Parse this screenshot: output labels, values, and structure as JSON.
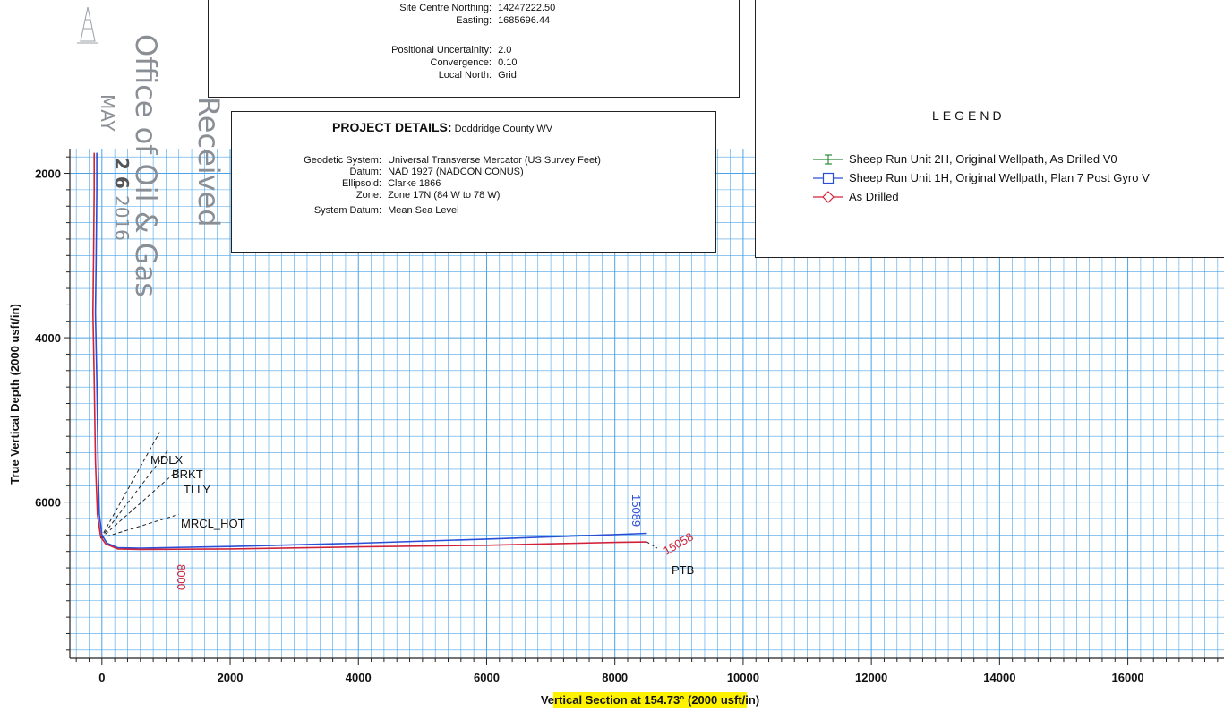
{
  "site": {
    "rows": [
      {
        "label": "Site Centre Northing:",
        "value": "14247222.50"
      },
      {
        "label": "Easting:",
        "value": "1685696.44"
      },
      {
        "label": "Positional Uncertainity:",
        "value": "2.0"
      },
      {
        "label": "Convergence:",
        "value": "0.10"
      },
      {
        "label": "Local North:",
        "value": "Grid"
      }
    ]
  },
  "project": {
    "title": "PROJECT DETAILS:",
    "county": "Doddridge County WV",
    "rows": [
      {
        "label": "Geodetic System:",
        "value": "Universal Transverse Mercator (US Survey Feet)"
      },
      {
        "label": "Datum:",
        "value": "NAD 1927 (NADCON CONUS)"
      },
      {
        "label": "Ellipsoid:",
        "value": "Clarke 1866"
      },
      {
        "label": "Zone:",
        "value": "Zone 17N (84 W to 78 W)"
      },
      {
        "label": "System Datum:",
        "value": "Mean Sea Level"
      }
    ]
  },
  "stamp": {
    "received": "Received",
    "office": "Office of Oil & Gas",
    "date_month": "MAY",
    "date_day": "2 6",
    "date_year": "2016"
  },
  "legend": {
    "title": "LEGEND",
    "items": [
      {
        "label": "Sheep Run Unit 2H, Original Wellpath, As Drilled V0",
        "color": "#2e8b3a",
        "marker": "plus"
      },
      {
        "label": "Sheep Run Unit 1H, Original Wellpath, Plan 7 Post Gyro V",
        "color": "#2a4fd6",
        "marker": "square"
      },
      {
        "label": "As Drilled",
        "color": "#d0233a",
        "marker": "diamond"
      }
    ]
  },
  "chart_data": {
    "type": "line",
    "xlabel": "Vertical Section at 154.73° (2000 usft/in)",
    "ylabel": "True Vertical Depth (2000 usft/in)",
    "xlim": [
      -500,
      17500
    ],
    "ylim": [
      7900,
      1700
    ],
    "x_ticks": [
      0,
      2000,
      4000,
      6000,
      8000,
      10000,
      12000,
      14000,
      16000
    ],
    "y_ticks": [
      2000,
      4000,
      6000
    ],
    "grid": true,
    "grid_color": "#4aa3e8",
    "x_highlight_color": "#fff200",
    "series": [
      {
        "name": "Sheep Run Unit 1H, Original Wellpath, Plan 7 Post Gyro V",
        "color": "#2a4fd6",
        "points": [
          [
            -80,
            1750
          ],
          [
            -80,
            2200
          ],
          [
            -90,
            3000
          ],
          [
            -100,
            3700
          ],
          [
            -80,
            4500
          ],
          [
            -60,
            5500
          ],
          [
            -40,
            6150
          ],
          [
            0,
            6400
          ],
          [
            80,
            6500
          ],
          [
            250,
            6555
          ],
          [
            600,
            6560
          ],
          [
            2000,
            6540
          ],
          [
            4000,
            6500
          ],
          [
            6000,
            6450
          ],
          [
            8000,
            6395
          ],
          [
            8500,
            6380
          ]
        ]
      },
      {
        "name": "As Drilled",
        "color": "#d0233a",
        "points": [
          [
            -120,
            1750
          ],
          [
            -120,
            2200
          ],
          [
            -130,
            3000
          ],
          [
            -140,
            3700
          ],
          [
            -120,
            4500
          ],
          [
            -100,
            5500
          ],
          [
            -70,
            6150
          ],
          [
            -20,
            6420
          ],
          [
            60,
            6510
          ],
          [
            250,
            6570
          ],
          [
            600,
            6575
          ],
          [
            2000,
            6570
          ],
          [
            4000,
            6545
          ],
          [
            6000,
            6525
          ],
          [
            8000,
            6490
          ],
          [
            8500,
            6485
          ]
        ]
      }
    ],
    "formations": [
      {
        "label": "MDLX",
        "value": 5150
      },
      {
        "label": "BRKT",
        "value": 5350
      },
      {
        "label": "TLLY",
        "value": 5600
      },
      {
        "label": "MRCL_HOT",
        "value": 6150
      }
    ],
    "end_labels": [
      {
        "text": "15089",
        "color": "#2a4fd6"
      },
      {
        "text": "15058",
        "color": "#d0233a"
      },
      {
        "text": "8000",
        "color": "#d0233a"
      },
      {
        "text": "PTB",
        "color": "#111111"
      }
    ]
  }
}
